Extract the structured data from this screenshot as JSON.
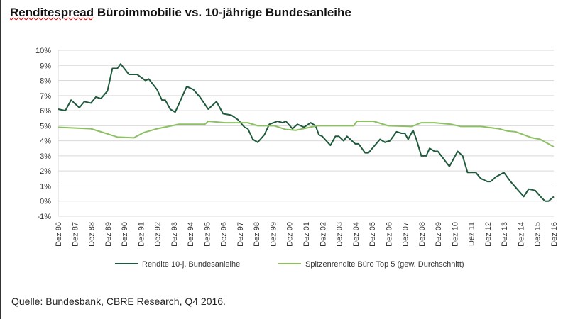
{
  "title_part1": "Renditespread",
  "title_part2": " Büroimmobilie vs. 10-jährige Bundesanleihe",
  "source": "Quelle:  Bundesbank, CBRE Research,  Q4 2016.",
  "chart_data": {
    "type": "line",
    "title": "Renditespread Büroimmobilie vs. 10-jährige Bundesanleihe",
    "ylim": [
      -1,
      10
    ],
    "yticks": [
      "-1%",
      "0%",
      "1%",
      "2%",
      "3%",
      "4%",
      "5%",
      "6%",
      "7%",
      "8%",
      "9%",
      "10%"
    ],
    "xlim": [
      1986.92,
      2016.92
    ],
    "xticks": [
      "Dez 86",
      "Dez 87",
      "Dez 88",
      "Dez 89",
      "Dez 90",
      "Dez 91",
      "Dez 92",
      "Dez 93",
      "Dez 94",
      "Dez 95",
      "Dez 96",
      "Dez 97",
      "Dez 98",
      "Dez 99",
      "Dez 00",
      "Dez 01",
      "Dez 02",
      "Dez 03",
      "Dez 04",
      "Dez 05",
      "Dez 06",
      "Dez 07",
      "Dez 08",
      "Dez 09",
      "Dez 10",
      "Dez 11",
      "Dez 12",
      "Dez 13",
      "Dez 14",
      "Dez 15",
      "Dez 16"
    ],
    "grid": true,
    "legend": "bottom",
    "series": [
      {
        "name": "Rendite 10-j. Bundesanleihe",
        "color": "#1f5a3c",
        "points": [
          [
            1986.92,
            6.1
          ],
          [
            1987.35,
            6.0
          ],
          [
            1987.7,
            6.7
          ],
          [
            1988.2,
            6.2
          ],
          [
            1988.5,
            6.6
          ],
          [
            1988.9,
            6.5
          ],
          [
            1989.2,
            6.9
          ],
          [
            1989.5,
            6.8
          ],
          [
            1989.9,
            7.3
          ],
          [
            1990.2,
            8.8
          ],
          [
            1990.5,
            8.8
          ],
          [
            1990.7,
            9.1
          ],
          [
            1991.2,
            8.4
          ],
          [
            1991.7,
            8.4
          ],
          [
            1992.2,
            8.0
          ],
          [
            1992.4,
            8.1
          ],
          [
            1992.9,
            7.4
          ],
          [
            1993.2,
            6.7
          ],
          [
            1993.4,
            6.7
          ],
          [
            1993.7,
            6.1
          ],
          [
            1994.0,
            5.9
          ],
          [
            1994.7,
            7.6
          ],
          [
            1995.1,
            7.4
          ],
          [
            1995.5,
            6.9
          ],
          [
            1996.0,
            6.1
          ],
          [
            1996.5,
            6.6
          ],
          [
            1996.9,
            5.8
          ],
          [
            1997.4,
            5.7
          ],
          [
            1997.8,
            5.4
          ],
          [
            1998.2,
            4.9
          ],
          [
            1998.4,
            4.8
          ],
          [
            1998.7,
            4.1
          ],
          [
            1999.0,
            3.9
          ],
          [
            1999.4,
            4.4
          ],
          [
            1999.7,
            5.1
          ],
          [
            2000.2,
            5.3
          ],
          [
            2000.5,
            5.2
          ],
          [
            2000.7,
            5.3
          ],
          [
            2001.1,
            4.8
          ],
          [
            2001.4,
            5.1
          ],
          [
            2001.8,
            4.9
          ],
          [
            2002.2,
            5.2
          ],
          [
            2002.5,
            5.0
          ],
          [
            2002.7,
            4.4
          ],
          [
            2002.9,
            4.3
          ],
          [
            2003.4,
            3.7
          ],
          [
            2003.7,
            4.3
          ],
          [
            2003.9,
            4.3
          ],
          [
            2004.2,
            4.0
          ],
          [
            2004.4,
            4.3
          ],
          [
            2004.9,
            3.8
          ],
          [
            2005.1,
            3.8
          ],
          [
            2005.5,
            3.2
          ],
          [
            2005.7,
            3.2
          ],
          [
            2006.4,
            4.1
          ],
          [
            2006.7,
            3.9
          ],
          [
            2007.0,
            4.0
          ],
          [
            2007.4,
            4.6
          ],
          [
            2007.7,
            4.5
          ],
          [
            2007.9,
            4.5
          ],
          [
            2008.1,
            4.1
          ],
          [
            2008.4,
            4.7
          ],
          [
            2008.6,
            4.1
          ],
          [
            2008.9,
            3.0
          ],
          [
            2009.2,
            3.0
          ],
          [
            2009.4,
            3.5
          ],
          [
            2009.7,
            3.3
          ],
          [
            2009.9,
            3.3
          ],
          [
            2010.6,
            2.3
          ],
          [
            2011.1,
            3.3
          ],
          [
            2011.4,
            3.0
          ],
          [
            2011.7,
            1.9
          ],
          [
            2012.2,
            1.9
          ],
          [
            2012.5,
            1.5
          ],
          [
            2012.9,
            1.3
          ],
          [
            2013.1,
            1.3
          ],
          [
            2013.4,
            1.6
          ],
          [
            2013.9,
            1.9
          ],
          [
            2014.3,
            1.3
          ],
          [
            2015.1,
            0.3
          ],
          [
            2015.4,
            0.8
          ],
          [
            2015.8,
            0.7
          ],
          [
            2016.2,
            0.2
          ],
          [
            2016.4,
            0.0
          ],
          [
            2016.6,
            0.0
          ],
          [
            2016.92,
            0.3
          ]
        ]
      },
      {
        "name": "Spitzenrendite Büro Top 5 (gew. Durchschnitt)",
        "color": "#8cc063",
        "points": [
          [
            1986.92,
            4.9
          ],
          [
            1988.9,
            4.8
          ],
          [
            1989.5,
            4.6
          ],
          [
            1990.5,
            4.25
          ],
          [
            1991.5,
            4.2
          ],
          [
            1992.1,
            4.55
          ],
          [
            1992.9,
            4.8
          ],
          [
            1993.8,
            5.0
          ],
          [
            1994.2,
            5.1
          ],
          [
            1995.8,
            5.1
          ],
          [
            1996.0,
            5.3
          ],
          [
            1997.0,
            5.2
          ],
          [
            1998.4,
            5.2
          ],
          [
            1999.0,
            5.0
          ],
          [
            2000.0,
            5.0
          ],
          [
            2000.7,
            4.75
          ],
          [
            2001.3,
            4.7
          ],
          [
            2002.6,
            5.0
          ],
          [
            2004.8,
            5.0
          ],
          [
            2005.0,
            5.3
          ],
          [
            2006.0,
            5.3
          ],
          [
            2006.9,
            5.0
          ],
          [
            2008.3,
            4.95
          ],
          [
            2008.9,
            5.2
          ],
          [
            2009.7,
            5.2
          ],
          [
            2010.7,
            5.1
          ],
          [
            2011.3,
            4.95
          ],
          [
            2012.5,
            4.95
          ],
          [
            2013.6,
            4.8
          ],
          [
            2014.1,
            4.65
          ],
          [
            2014.6,
            4.6
          ],
          [
            2015.6,
            4.2
          ],
          [
            2016.1,
            4.1
          ],
          [
            2016.92,
            3.6
          ]
        ]
      }
    ]
  }
}
